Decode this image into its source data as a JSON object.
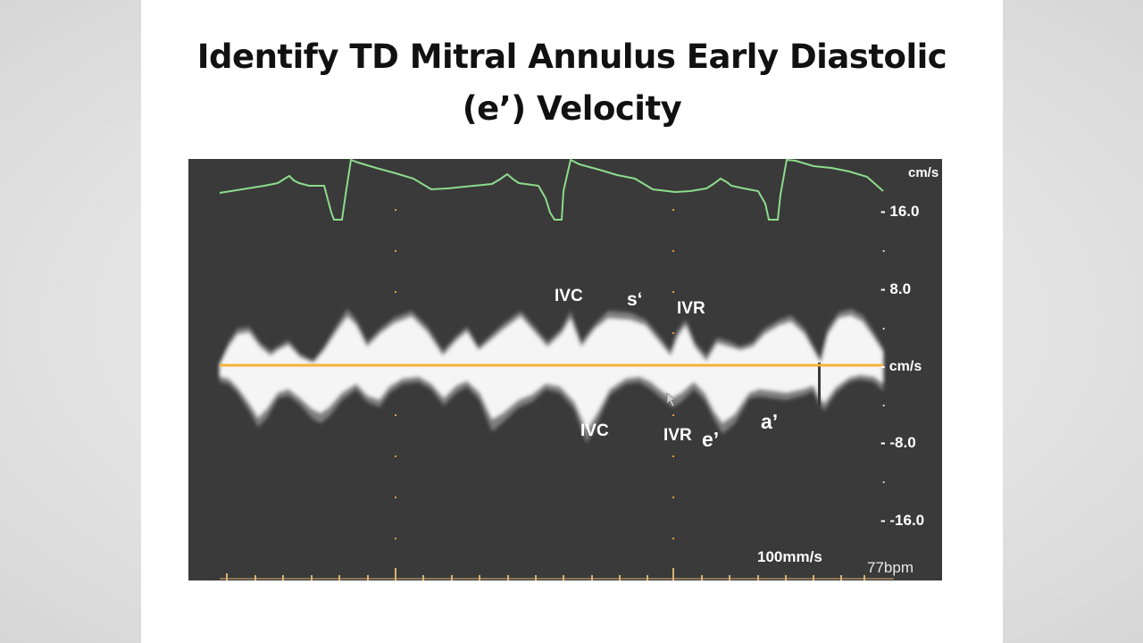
{
  "slide": {
    "title_line1": "Identify TD Mitral Annulus Early Diastolic",
    "title_line2": "(e’) Velocity"
  },
  "echo": {
    "scale": {
      "unit_top": "cm/s",
      "ticks": [
        "16.0",
        "8.0",
        "cm/s",
        "-8.0",
        "-16.0"
      ]
    },
    "sweep_speed": "100mm/s",
    "heart_rate": "77bpm",
    "annotations": {
      "ivc_top": "IVC",
      "s_prime": "s‘",
      "ivr_top": "IVR",
      "ivc_bottom": "IVC",
      "ivr_bottom": "IVR",
      "e_prime": "e’",
      "a_prime": "a’"
    },
    "colors": {
      "background": "#3a3a3a",
      "ecg": "#8ddc8d",
      "baseline": "#f5b338",
      "doppler": "#ffffff",
      "markers": "#e0a040"
    }
  }
}
